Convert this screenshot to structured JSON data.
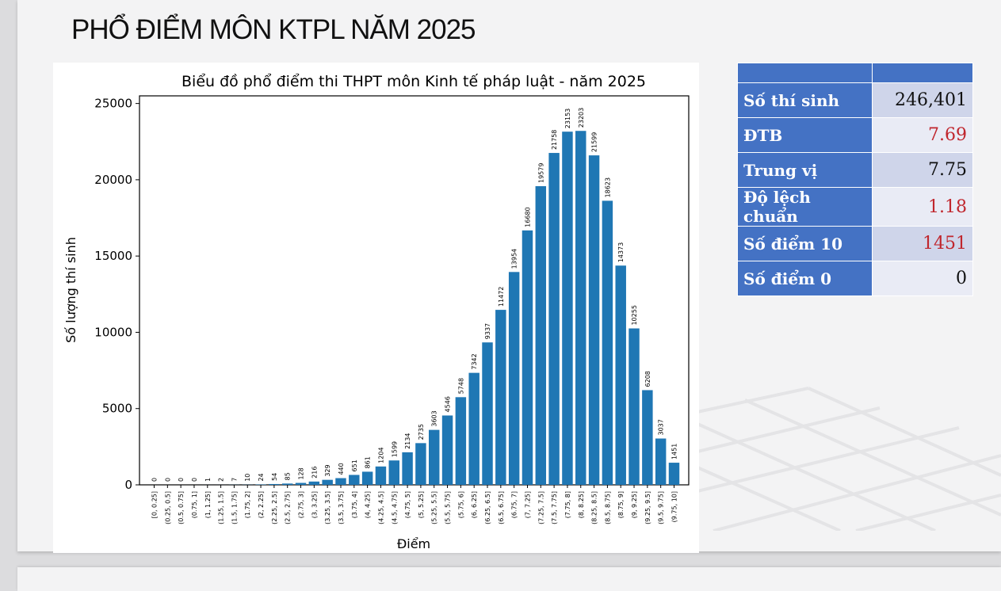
{
  "page": {
    "title": "PHỔ ĐIỂM MÔN KTPL NĂM 2025"
  },
  "stats": {
    "rows": [
      {
        "label": "Số thí sinh",
        "value": "246,401",
        "color": "#111111"
      },
      {
        "label": "ĐTB",
        "value": "7.69",
        "color": "#c0262d"
      },
      {
        "label": "Trung vị",
        "value": "7.75",
        "color": "#111111"
      },
      {
        "label": "Độ lệch chuẩn",
        "value": "1.18",
        "color": "#c0262d"
      },
      {
        "label": "Số điểm 10",
        "value": "1451",
        "color": "#c0262d"
      },
      {
        "label": "Số điểm 0",
        "value": "0",
        "color": "#111111"
      }
    ]
  },
  "chart_data": {
    "type": "bar",
    "title": "Biểu đồ phổ điểm thi THPT môn Kinh tế pháp luật - năm 2025",
    "xlabel": "Điểm",
    "ylabel": "Số lượng thí sinh",
    "ylim": [
      0,
      25500
    ],
    "yticks": [
      0,
      5000,
      10000,
      15000,
      20000,
      25000
    ],
    "bar_color": "#1f77b4",
    "grid": false,
    "categories": [
      "[0, 0.25]",
      "(0.25, 0.5]",
      "(0.5, 0.75]",
      "(0.75, 1]",
      "(1, 1.25]",
      "(1.25, 1.5]",
      "(1.5, 1.75]",
      "(1.75, 2]",
      "(2, 2.25]",
      "(2.25, 2.5]",
      "(2.5, 2.75]",
      "(2.75, 3]",
      "(3, 3.25]",
      "(3.25, 3.5]",
      "(3.5, 3.75]",
      "(3.75, 4]",
      "(4, 4.25]",
      "(4.25, 4.5]",
      "(4.5, 4.75]",
      "(4.75, 5]",
      "(5, 5.25]",
      "(5.25, 5.5]",
      "(5.5, 5.75]",
      "(5.75, 6]",
      "(6, 6.25]",
      "(6.25, 6.5]",
      "(6.5, 6.75]",
      "(6.75, 7]",
      "(7, 7.25]",
      "(7.25, 7.5]",
      "(7.5, 7.75]",
      "(7.75, 8]",
      "(8, 8.25]",
      "(8.25, 8.5]",
      "(8.5, 8.75]",
      "(8.75, 9]",
      "(9, 9.25]",
      "(9.25, 9.5]",
      "(9.5, 9.75]",
      "(9.75, 10]"
    ],
    "values": [
      0,
      0,
      0,
      0,
      1,
      2,
      7,
      10,
      24,
      54,
      85,
      128,
      216,
      329,
      440,
      651,
      861,
      1204,
      1599,
      2134,
      2735,
      3603,
      4546,
      5748,
      7342,
      9337,
      11472,
      13954,
      16680,
      19579,
      21758,
      23153,
      23203,
      21599,
      18623,
      14373,
      10255,
      6208,
      3037,
      1451
    ]
  }
}
